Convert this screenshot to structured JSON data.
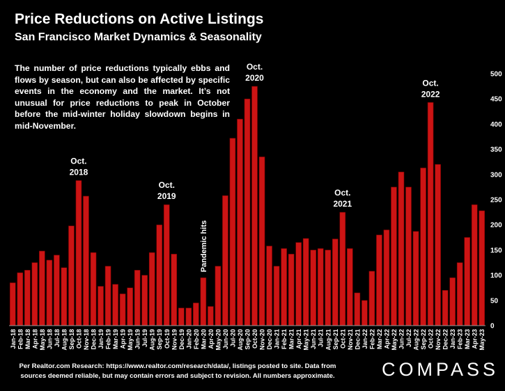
{
  "header": {
    "title": "Price Reductions on Active Listings",
    "subtitle": "San Francisco Market Dynamics & Seasonality",
    "description": "The number of price reductions typically ebbs and flows by season, but can also be affected by specific events in the economy and the market. It’s not unusual for price reductions to peak in October before the mid-winter holiday slowdown begins in mid-November."
  },
  "footer": {
    "source_line1": "Per Realtor.com Research:  https://www.realtor.com/research/data/, listings posted to site. Data from",
    "source_line2": "sources deemed reliable, but may contain errors and subject to revision. All numbers approximate.",
    "brand": "COMPASS"
  },
  "colors": {
    "bar": "#cc1414",
    "bar_edge": "#7a0000",
    "background": "#000000",
    "text": "#ffffff",
    "axis": "#9a9a9a"
  },
  "chart_data": {
    "type": "bar",
    "title": "Price Reductions on Active Listings",
    "subtitle": "San Francisco Market Dynamics & Seasonality",
    "xlabel": "",
    "ylabel": "",
    "ylim": [
      0,
      500
    ],
    "y_ticks": [
      0,
      50,
      100,
      150,
      200,
      250,
      300,
      350,
      400,
      450,
      500
    ],
    "y_axis_side": "right",
    "grid": false,
    "legend": "none",
    "categories": [
      "Jan-18",
      "Feb-18",
      "Mar-18",
      "Apr-18",
      "May-18",
      "Jun-18",
      "Jul-18",
      "Aug-18",
      "Sep-18",
      "Oct-18",
      "Nov-18",
      "Dec-18",
      "Jan-19",
      "Feb-19",
      "Mar-19",
      "Apr-19",
      "May-19",
      "Jun-19",
      "Jul-19",
      "Aug-19",
      "Sep-19",
      "Oct-19",
      "Nov-19",
      "Dec-19",
      "Jan-20",
      "Feb-20",
      "Mar-20",
      "Apr-20",
      "May-20",
      "Jun-20",
      "Jul-20",
      "Aug-20",
      "Sep-20",
      "Oct-20",
      "Nov-20",
      "Dec-20",
      "Jan-21",
      "Feb-21",
      "Mar-21",
      "Apr-21",
      "May-21",
      "Jun-21",
      "Jul-21",
      "Aug-21",
      "Sep-21",
      "Oct-21",
      "Nov-21",
      "Dec-21",
      "Jan-22",
      "Feb-22",
      "Mar-22",
      "Apr-22",
      "May-22",
      "Jun-22",
      "Jul-22",
      "Aug-22",
      "Sep-22",
      "Oct-22",
      "Nov-22",
      "Dec-22",
      "Jan-23",
      "Feb-23",
      "Mar-23",
      "Apr-23",
      "May-23"
    ],
    "tick_labels": [
      "Jan-18",
      "Mar-18",
      "May-18",
      "Jul-18",
      "Sep-18",
      "Nov-18",
      "Jan-19",
      "Mar-19",
      "May-19",
      "Jul-19",
      "Sep-19",
      "Nov-19",
      "Jan-20",
      "Mar-20",
      "May-20",
      "Jul-20",
      "Sep-20",
      "Nov-20",
      "Jan-21",
      "Mar-21",
      "May-21",
      "Jul-21",
      "Sep-21",
      "Nov-21",
      "Jan-22",
      "Mar-22",
      "May-22",
      "Jul-22",
      "Sep-22",
      "Nov-22",
      "Jan-23",
      "Mar-23",
      "May-23",
      "Feb-18",
      "Apr-18",
      "Jun-18",
      "Aug-18",
      "Oct-18",
      "Dec-18",
      "Feb-19",
      "Apr-19",
      "Jun-19",
      "Aug-19",
      "Oct-19",
      "Dec-19",
      "Feb-20",
      "Apr-20",
      "Jun-20",
      "Aug-20",
      "Oct-20",
      "Dec-20",
      "Feb-21",
      "Apr-21",
      "Jun-21",
      "Aug-21",
      "Oct-21",
      "Dec-21",
      "Feb-22",
      "Apr-22",
      "Jun-22",
      "Aug-22",
      "Oct-22",
      "Dec-22",
      "Feb-23",
      "Apr-23"
    ],
    "series": [
      {
        "values": [
          85,
          105,
          110,
          125,
          148,
          130,
          140,
          115,
          198,
          288,
          257,
          145,
          78,
          118,
          82,
          63,
          75,
          110,
          100,
          145,
          200,
          240,
          142,
          35,
          35,
          45,
          95,
          38,
          118,
          258,
          372,
          410,
          450,
          475,
          335,
          158,
          118,
          153,
          142,
          165,
          173,
          150,
          153,
          150,
          172,
          225,
          153,
          65,
          50,
          108,
          180,
          190,
          275,
          305,
          275,
          187,
          313,
          443,
          320,
          70,
          95,
          125,
          175,
          240,
          228
        ]
      }
    ],
    "annotations": [
      {
        "text": "Oct.\n2018",
        "category": "Oct-18"
      },
      {
        "text": "Oct.\n2019",
        "category": "Oct-19"
      },
      {
        "text": "Pandemic hits",
        "category": "Mar-20",
        "rotated": true
      },
      {
        "text": "Oct.\n2020",
        "category": "Oct-20"
      },
      {
        "text": "Oct.\n2021",
        "category": "Oct-21"
      },
      {
        "text": "Oct.\n2022",
        "category": "Oct-22"
      }
    ]
  }
}
